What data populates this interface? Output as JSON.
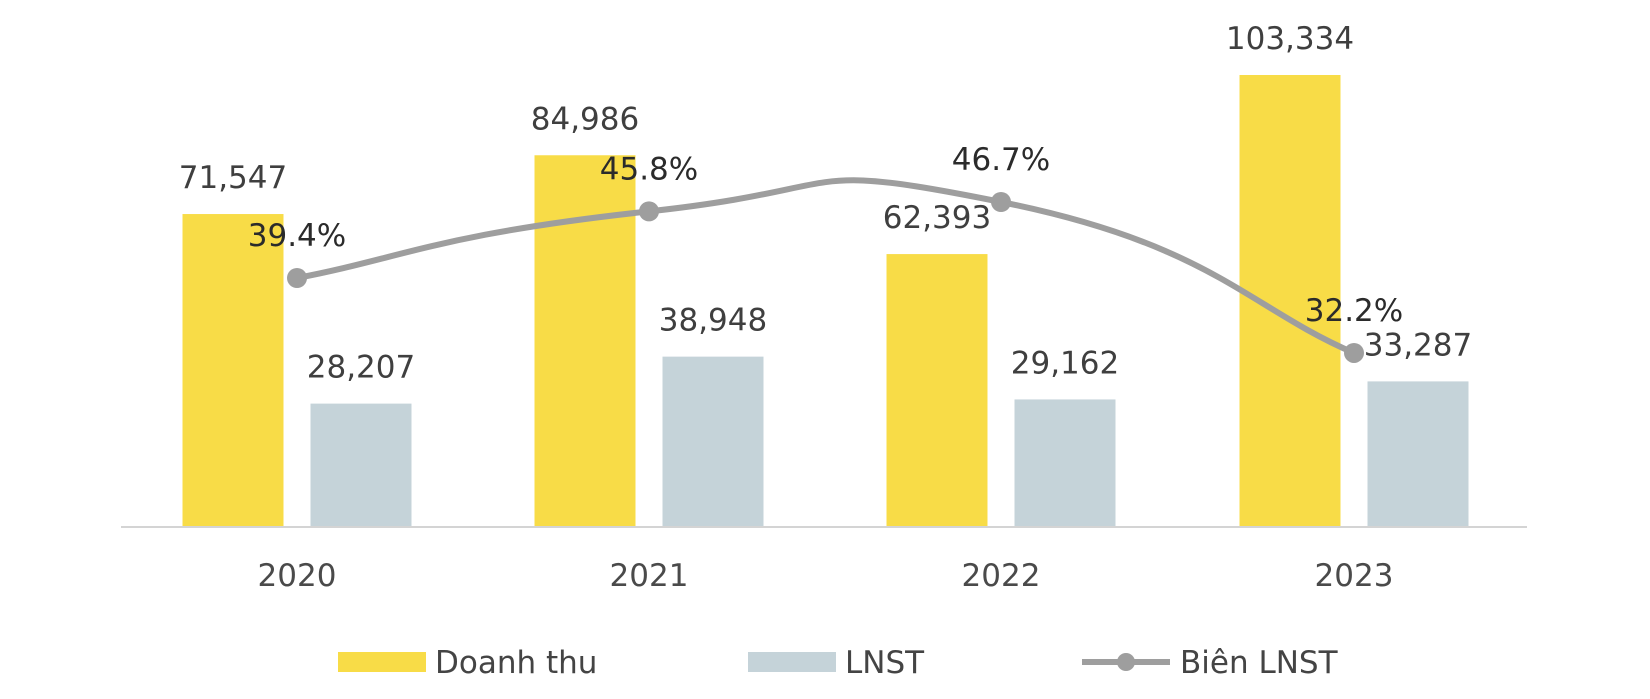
{
  "chart_data": {
    "type": "bar",
    "categories": [
      "2020",
      "2021",
      "2022",
      "2023"
    ],
    "series": [
      {
        "name": "Doanh thu",
        "type": "bar",
        "color": "#F8DC47",
        "values": [
          71547,
          84986,
          62393,
          103334
        ],
        "labels": [
          "71,547",
          "84,986",
          "62,393",
          "103,334"
        ]
      },
      {
        "name": "LNST",
        "type": "bar",
        "color": "#C5D3D9",
        "values": [
          28207,
          38948,
          29162,
          33287
        ],
        "labels": [
          "28,207",
          "38,948",
          "29,162",
          "33,287"
        ]
      },
      {
        "name": "Biên LNST",
        "type": "line",
        "color": "#9E9E9E",
        "values": [
          39.4,
          45.8,
          46.7,
          32.2
        ],
        "labels": [
          "39.4%",
          "45.8%",
          "46.7%",
          "32.2%"
        ]
      }
    ],
    "ylim": [
      0,
      110000
    ],
    "grid": false,
    "legend_position": "bottom"
  }
}
